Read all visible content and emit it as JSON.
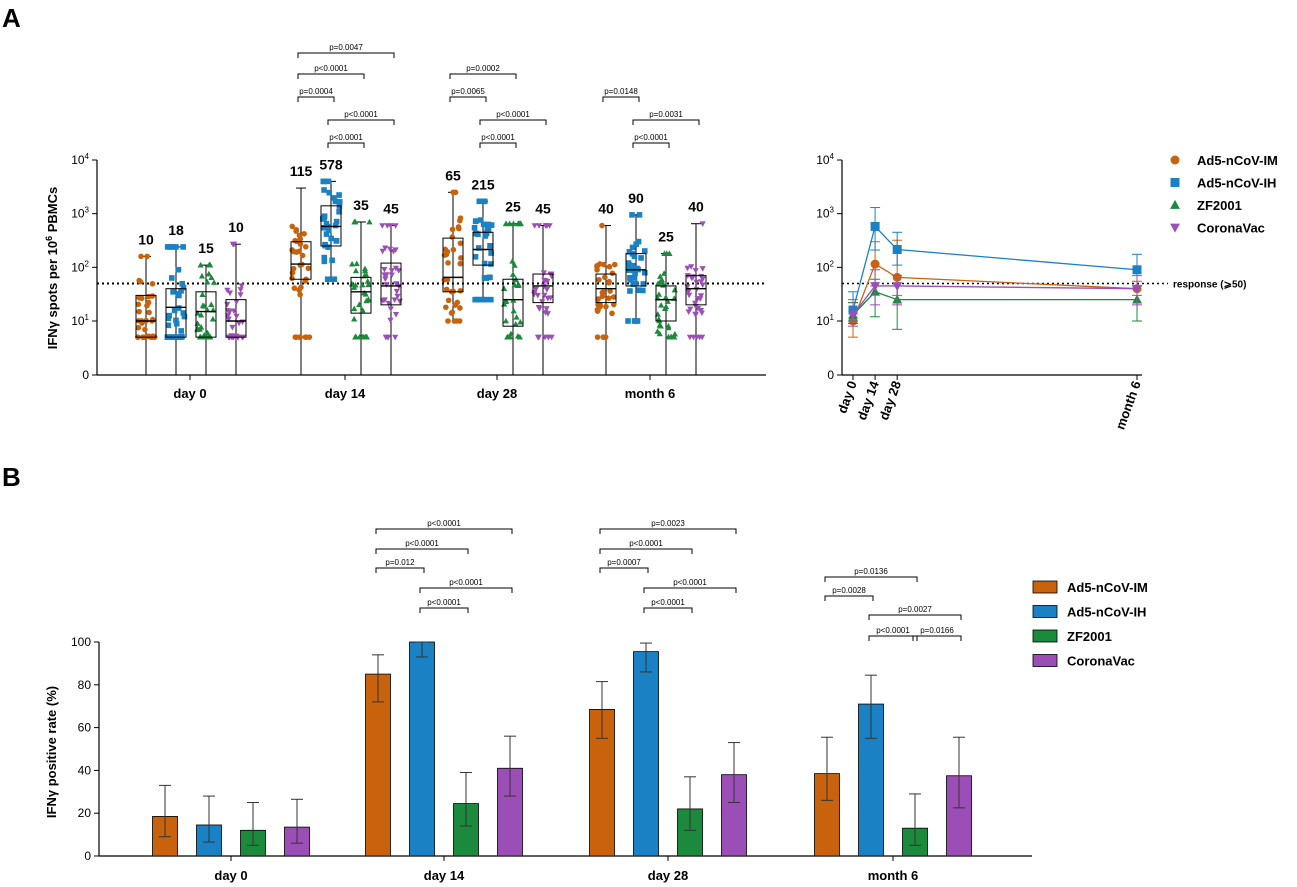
{
  "colors": {
    "Ad5-nCoV-IM": "#c8620c",
    "Ad5-nCoV-IH": "#1a82c4",
    "ZF2001": "#1b8a3c",
    "CoronaVac": "#9b4fb6"
  },
  "marker_shapes": [
    "circle",
    "square",
    "triangle-up",
    "triangle-down"
  ],
  "panel_a_label": "A",
  "panel_b_label": "B",
  "chart_data": [
    {
      "id": "A-left",
      "type": "box-scatter",
      "ylabel": "IFNγ spots per 10⁶ PBMCs",
      "ylabel_parts": [
        "IFNγ spots per 10",
        "6",
        " PBMCs"
      ],
      "yscale": "log",
      "yticks": [
        {
          "label": "0",
          "value": 0
        },
        {
          "base": "10",
          "exp": "1",
          "value": 10
        },
        {
          "base": "10",
          "exp": "2",
          "value": 100
        },
        {
          "base": "10",
          "exp": "3",
          "value": 1000
        },
        {
          "base": "10",
          "exp": "4",
          "value": 10000
        }
      ],
      "threshold": 50,
      "categories": [
        "day 0",
        "day 14",
        "day 28",
        "month 6"
      ],
      "series": [
        "Ad5-nCoV-IM",
        "Ad5-nCoV-IH",
        "ZF2001",
        "CoronaVac"
      ],
      "groups": [
        {
          "category": "day 0",
          "boxes": [
            {
              "series": "Ad5-nCoV-IM",
              "median_label": "10",
              "median": 10,
              "q1": 5,
              "q3": 30,
              "min": 0,
              "max": 160
            },
            {
              "series": "Ad5-nCoV-IH",
              "median_label": "18",
              "median": 18,
              "q1": 5,
              "q3": 40,
              "min": 0,
              "max": 240
            },
            {
              "series": "ZF2001",
              "median_label": "15",
              "median": 15,
              "q1": 5,
              "q3": 35,
              "min": 0,
              "max": 110
            },
            {
              "series": "CoronaVac",
              "median_label": "10",
              "median": 10,
              "q1": 5,
              "q3": 25,
              "min": 0,
              "max": 270
            }
          ]
        },
        {
          "category": "day 14",
          "boxes": [
            {
              "series": "Ad5-nCoV-IM",
              "median_label": "115",
              "median": 115,
              "q1": 60,
              "q3": 300,
              "min": 0,
              "max": 3000
            },
            {
              "series": "Ad5-nCoV-IH",
              "median_label": "578",
              "median": 578,
              "q1": 250,
              "q3": 1400,
              "min": 60,
              "max": 4000
            },
            {
              "series": "ZF2001",
              "median_label": "35",
              "median": 35,
              "q1": 14,
              "q3": 65,
              "min": 0,
              "max": 700
            },
            {
              "series": "CoronaVac",
              "median_label": "45",
              "median": 45,
              "q1": 20,
              "q3": 120,
              "min": 0,
              "max": 600
            }
          ]
        },
        {
          "category": "day 28",
          "boxes": [
            {
              "series": "Ad5-nCoV-IM",
              "median_label": "65",
              "median": 65,
              "q1": 35,
              "q3": 350,
              "min": 10,
              "max": 2500
            },
            {
              "series": "Ad5-nCoV-IH",
              "median_label": "215",
              "median": 215,
              "q1": 110,
              "q3": 450,
              "min": 25,
              "max": 1700
            },
            {
              "series": "ZF2001",
              "median_label": "25",
              "median": 25,
              "q1": 8,
              "q3": 60,
              "min": 0,
              "max": 650
            },
            {
              "series": "CoronaVac",
              "median_label": "45",
              "median": 45,
              "q1": 22,
              "q3": 75,
              "min": 0,
              "max": 600
            }
          ]
        },
        {
          "category": "month 6",
          "boxes": [
            {
              "series": "Ad5-nCoV-IM",
              "median_label": "40",
              "median": 40,
              "q1": 22,
              "q3": 75,
              "min": 0,
              "max": 600
            },
            {
              "series": "Ad5-nCoV-IH",
              "median_label": "90",
              "median": 90,
              "q1": 45,
              "q3": 180,
              "min": 10,
              "max": 950
            },
            {
              "series": "ZF2001",
              "median_label": "25",
              "median": 25,
              "q1": 10,
              "q3": 45,
              "min": 0,
              "max": 180
            },
            {
              "series": "CoronaVac",
              "median_label": "40",
              "median": 40,
              "q1": 20,
              "q3": 70,
              "min": 0,
              "max": 650
            }
          ]
        }
      ],
      "comparisons": [
        {
          "category": "day 14",
          "from": 0,
          "to": 3,
          "label": "p=0.0047",
          "tier": 4
        },
        {
          "category": "day 14",
          "from": 0,
          "to": 2,
          "label": "p<0.0001",
          "tier": 3
        },
        {
          "category": "day 14",
          "from": 0,
          "to": 1,
          "label": "p=0.0004",
          "tier": 2
        },
        {
          "category": "day 14",
          "from": 1,
          "to": 3,
          "label": "p<0.0001",
          "tier": 1
        },
        {
          "category": "day 14",
          "from": 1,
          "to": 2,
          "label": "p<0.0001",
          "tier": 0
        },
        {
          "category": "day 28",
          "from": 0,
          "to": 2,
          "label": "p=0.0002",
          "tier": 3
        },
        {
          "category": "day 28",
          "from": 0,
          "to": 1,
          "label": "p=0.0065",
          "tier": 2
        },
        {
          "category": "day 28",
          "from": 1,
          "to": 3,
          "label": "p<0.0001",
          "tier": 1
        },
        {
          "category": "day 28",
          "from": 1,
          "to": 2,
          "label": "p<0.0001",
          "tier": 0
        },
        {
          "category": "month 6",
          "from": 0,
          "to": 1,
          "label": "p=0.0148",
          "tier": 2
        },
        {
          "category": "month 6",
          "from": 1,
          "to": 3,
          "label": "p=0.0031",
          "tier": 1
        },
        {
          "category": "month 6",
          "from": 1,
          "to": 2,
          "label": "p<0.0001",
          "tier": 0
        }
      ]
    },
    {
      "id": "A-right",
      "type": "line",
      "yscale": "log",
      "yticks": [
        {
          "label": "0",
          "value": 0
        },
        {
          "base": "10",
          "exp": "1",
          "value": 10
        },
        {
          "base": "10",
          "exp": "2",
          "value": 100
        },
        {
          "base": "10",
          "exp": "3",
          "value": 1000
        },
        {
          "base": "10",
          "exp": "4",
          "value": 10000
        }
      ],
      "x_labels": [
        "day 0",
        "day 14",
        "day 28",
        "month 6"
      ],
      "x_days": [
        0,
        14,
        28,
        180
      ],
      "threshold": 50,
      "threshold_label": "response (⩾50)",
      "series": [
        {
          "name": "Ad5-nCoV-IM",
          "values": [
            10,
            115,
            65,
            40
          ],
          "err_low": [
            5,
            45,
            30,
            30
          ],
          "err_high": [
            22,
            300,
            320,
            55
          ]
        },
        {
          "name": "Ad5-nCoV-IH",
          "values": [
            16,
            578,
            215,
            90
          ],
          "err_low": [
            10,
            210,
            110,
            45
          ],
          "err_high": [
            35,
            1300,
            450,
            175
          ]
        },
        {
          "name": "ZF2001",
          "values": [
            13,
            35,
            25,
            25
          ],
          "err_low": [
            9,
            12,
            7,
            10
          ],
          "err_high": [
            22,
            60,
            45,
            45
          ]
        },
        {
          "name": "CoronaVac",
          "values": [
            13,
            45,
            45,
            40
          ],
          "err_low": [
            8,
            20,
            20,
            20
          ],
          "err_high": [
            25,
            90,
            70,
            70
          ]
        }
      ],
      "legend": [
        "Ad5-nCoV-IM",
        "Ad5-nCoV-IH",
        "ZF2001",
        "CoronaVac"
      ]
    },
    {
      "id": "B",
      "type": "bar",
      "ylabel": "IFNγ positive rate (%)",
      "ylim": [
        0,
        100
      ],
      "yticks": [
        "0",
        "20",
        "40",
        "60",
        "80",
        "100"
      ],
      "categories": [
        "day 0",
        "day 14",
        "day 28",
        "month 6"
      ],
      "series": [
        {
          "name": "Ad5-nCoV-IM",
          "values": [
            18.5,
            85,
            68.5,
            38.5
          ],
          "err_low": [
            9,
            72,
            55,
            26
          ],
          "err_high": [
            33,
            94,
            81.5,
            55.5
          ]
        },
        {
          "name": "Ad5-nCoV-IH",
          "values": [
            14.5,
            100,
            95.5,
            71
          ],
          "err_low": [
            6.5,
            93,
            86,
            55
          ],
          "err_high": [
            28,
            100,
            99.5,
            84.5
          ]
        },
        {
          "name": "ZF2001",
          "values": [
            12,
            24.5,
            22,
            13
          ],
          "err_low": [
            5,
            14,
            12,
            5
          ],
          "err_high": [
            25,
            39,
            37,
            29
          ]
        },
        {
          "name": "CoronaVac",
          "values": [
            13.5,
            41,
            38,
            37.5
          ],
          "err_low": [
            6,
            28,
            25,
            22.5
          ],
          "err_high": [
            26.5,
            56,
            53,
            55.5
          ]
        }
      ],
      "legend": [
        "Ad5-nCoV-IM",
        "Ad5-nCoV-IH",
        "ZF2001",
        "CoronaVac"
      ],
      "comparisons": [
        {
          "category": "day 14",
          "from": 0,
          "to": 3,
          "label": "p<0.0001",
          "tier": 4
        },
        {
          "category": "day 14",
          "from": 0,
          "to": 2,
          "label": "p<0.0001",
          "tier": 3
        },
        {
          "category": "day 14",
          "from": 0,
          "to": 1,
          "label": "p=0.012",
          "tier": 2
        },
        {
          "category": "day 14",
          "from": 1,
          "to": 3,
          "label": "p<0.0001",
          "tier": 1
        },
        {
          "category": "day 14",
          "from": 1,
          "to": 2,
          "label": "p<0.0001",
          "tier": 0
        },
        {
          "category": "day 28",
          "from": 0,
          "to": 3,
          "label": "p=0.0023",
          "tier": 4
        },
        {
          "category": "day 28",
          "from": 0,
          "to": 2,
          "label": "p<0.0001",
          "tier": 3
        },
        {
          "category": "day 28",
          "from": 0,
          "to": 1,
          "label": "p=0.0007",
          "tier": 2
        },
        {
          "category": "day 28",
          "from": 1,
          "to": 3,
          "label": "p<0.0001",
          "tier": 1
        },
        {
          "category": "day 28",
          "from": 1,
          "to": 2,
          "label": "p<0.0001",
          "tier": 0
        },
        {
          "category": "month 6",
          "from": 0,
          "to": 2,
          "label": "p=0.0136",
          "tier": 4
        },
        {
          "category": "month 6",
          "from": 0,
          "to": 1,
          "label": "p=0.0028",
          "tier": 3
        },
        {
          "category": "month 6",
          "from": 1,
          "to": 3,
          "label": "p=0.0027",
          "tier": 2
        },
        {
          "category": "month 6",
          "from": 1,
          "to": 2,
          "label": "p<0.0001",
          "tier": 1
        },
        {
          "category": "month 6",
          "from": 2,
          "to": 3,
          "label": "p=0.0166",
          "tier": 1
        }
      ]
    }
  ]
}
